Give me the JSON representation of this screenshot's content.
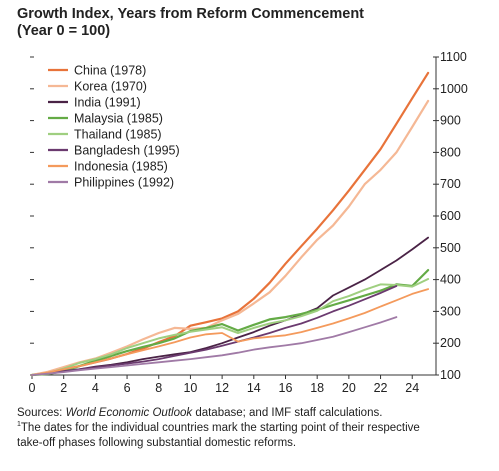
{
  "chart_data": {
    "type": "line",
    "title": "Growth Index, Years from Reform Commencement",
    "subtitle": "(Year 0 = 100)",
    "xlabel": "",
    "ylabel": "",
    "xlim": [
      0,
      25.5
    ],
    "ylim": [
      100,
      1100
    ],
    "x_ticks": [
      0,
      2,
      4,
      6,
      8,
      10,
      12,
      14,
      16,
      18,
      20,
      22,
      24
    ],
    "y_ticks": [
      100,
      200,
      300,
      400,
      500,
      600,
      700,
      800,
      900,
      1000,
      1100
    ],
    "y_tick_side": "right",
    "grid": false,
    "legend_position": "top-left",
    "series": [
      {
        "name": "China (1978)",
        "color": "#e8733a",
        "width": 2.2,
        "x": [
          0,
          1,
          2,
          3,
          4,
          5,
          6,
          7,
          8,
          9,
          10,
          11,
          12,
          13,
          14,
          15,
          16,
          17,
          18,
          19,
          20,
          21,
          22,
          23,
          24,
          25
        ],
        "y": [
          100,
          108,
          118,
          128,
          140,
          152,
          166,
          183,
          203,
          222,
          255,
          266,
          278,
          300,
          340,
          390,
          450,
          505,
          560,
          618,
          680,
          745,
          810,
          890,
          970,
          1050
        ]
      },
      {
        "name": "Korea (1970)",
        "color": "#f5b895",
        "width": 2.2,
        "x": [
          0,
          1,
          2,
          3,
          4,
          5,
          6,
          7,
          8,
          9,
          10,
          11,
          12,
          13,
          14,
          15,
          16,
          17,
          18,
          19,
          20,
          21,
          22,
          23,
          24,
          25
        ],
        "y": [
          100,
          110,
          125,
          140,
          152,
          170,
          190,
          212,
          232,
          248,
          245,
          248,
          272,
          292,
          325,
          360,
          412,
          470,
          525,
          570,
          630,
          700,
          745,
          800,
          880,
          962
        ]
      },
      {
        "name": "India (1991)",
        "color": "#4a2346",
        "width": 1.8,
        "x": [
          0,
          1,
          2,
          3,
          4,
          5,
          6,
          7,
          8,
          9,
          10,
          11,
          12,
          13,
          14,
          15,
          16,
          17,
          18,
          19,
          20,
          21,
          22,
          23,
          24,
          25
        ],
        "y": [
          100,
          104,
          111,
          118,
          126,
          132,
          140,
          150,
          158,
          165,
          172,
          185,
          200,
          218,
          235,
          255,
          272,
          290,
          310,
          350,
          375,
          400,
          430,
          460,
          495,
          532
        ]
      },
      {
        "name": "Malaysia (1985)",
        "color": "#64ab46",
        "width": 2.2,
        "x": [
          0,
          1,
          2,
          3,
          4,
          5,
          6,
          7,
          8,
          9,
          10,
          11,
          12,
          13,
          14,
          15,
          16,
          17,
          18,
          19,
          20,
          21,
          22,
          23,
          24,
          25
        ],
        "y": [
          100,
          103,
          112,
          128,
          145,
          160,
          175,
          188,
          200,
          215,
          238,
          248,
          260,
          240,
          258,
          275,
          282,
          292,
          305,
          320,
          335,
          350,
          365,
          385,
          380,
          430
        ]
      },
      {
        "name": "Thailand (1985)",
        "color": "#9fcf80",
        "width": 2.0,
        "x": [
          0,
          1,
          2,
          3,
          4,
          5,
          6,
          7,
          8,
          9,
          10,
          11,
          12,
          13,
          14,
          15,
          16,
          17,
          18,
          19,
          20,
          21,
          22,
          23,
          24,
          25
        ],
        "y": [
          100,
          106,
          120,
          138,
          150,
          165,
          185,
          200,
          215,
          226,
          236,
          243,
          250,
          232,
          248,
          262,
          272,
          285,
          302,
          332,
          348,
          368,
          385,
          383,
          378,
          402
        ]
      },
      {
        "name": "Bangladesh (1995)",
        "color": "#6b3a6f",
        "width": 1.8,
        "x": [
          0,
          1,
          2,
          3,
          4,
          5,
          6,
          7,
          8,
          9,
          10,
          11,
          12,
          13,
          14,
          15,
          16,
          17,
          18,
          19,
          20,
          21,
          22,
          23
        ],
        "y": [
          100,
          106,
          112,
          118,
          124,
          130,
          136,
          142,
          150,
          160,
          170,
          180,
          192,
          205,
          218,
          232,
          248,
          262,
          280,
          300,
          318,
          338,
          358,
          380
        ]
      },
      {
        "name": "Indonesia (1985)",
        "color": "#f49a5c",
        "width": 1.8,
        "x": [
          0,
          1,
          2,
          3,
          4,
          5,
          6,
          7,
          8,
          9,
          10,
          11,
          12,
          13,
          14,
          15,
          16,
          17,
          18,
          19,
          20,
          21,
          22,
          23,
          24,
          25
        ],
        "y": [
          100,
          108,
          118,
          128,
          140,
          152,
          165,
          178,
          190,
          203,
          218,
          228,
          232,
          205,
          215,
          220,
          225,
          235,
          248,
          262,
          278,
          295,
          315,
          335,
          355,
          370
        ]
      },
      {
        "name": "Philippines (1992)",
        "color": "#a07aa6",
        "width": 1.8,
        "x": [
          0,
          1,
          2,
          3,
          4,
          5,
          6,
          7,
          8,
          9,
          10,
          11,
          12,
          13,
          14,
          15,
          16,
          17,
          18,
          19,
          20,
          21,
          22,
          23
        ],
        "y": [
          100,
          104,
          109,
          115,
          120,
          125,
          130,
          135,
          140,
          145,
          150,
          156,
          162,
          170,
          180,
          187,
          193,
          200,
          210,
          220,
          235,
          250,
          265,
          282
        ]
      }
    ]
  },
  "notes": {
    "sources_prefix": "Sources: ",
    "sources_italic": "World Economic Outlook",
    "sources_suffix": " database; and IMF staff calculations.",
    "footnote_marker": "1",
    "footnote_line1": "The dates for the individual countries mark the starting point of their respective",
    "footnote_line2": "take-off phases following substantial domestic reforms."
  }
}
